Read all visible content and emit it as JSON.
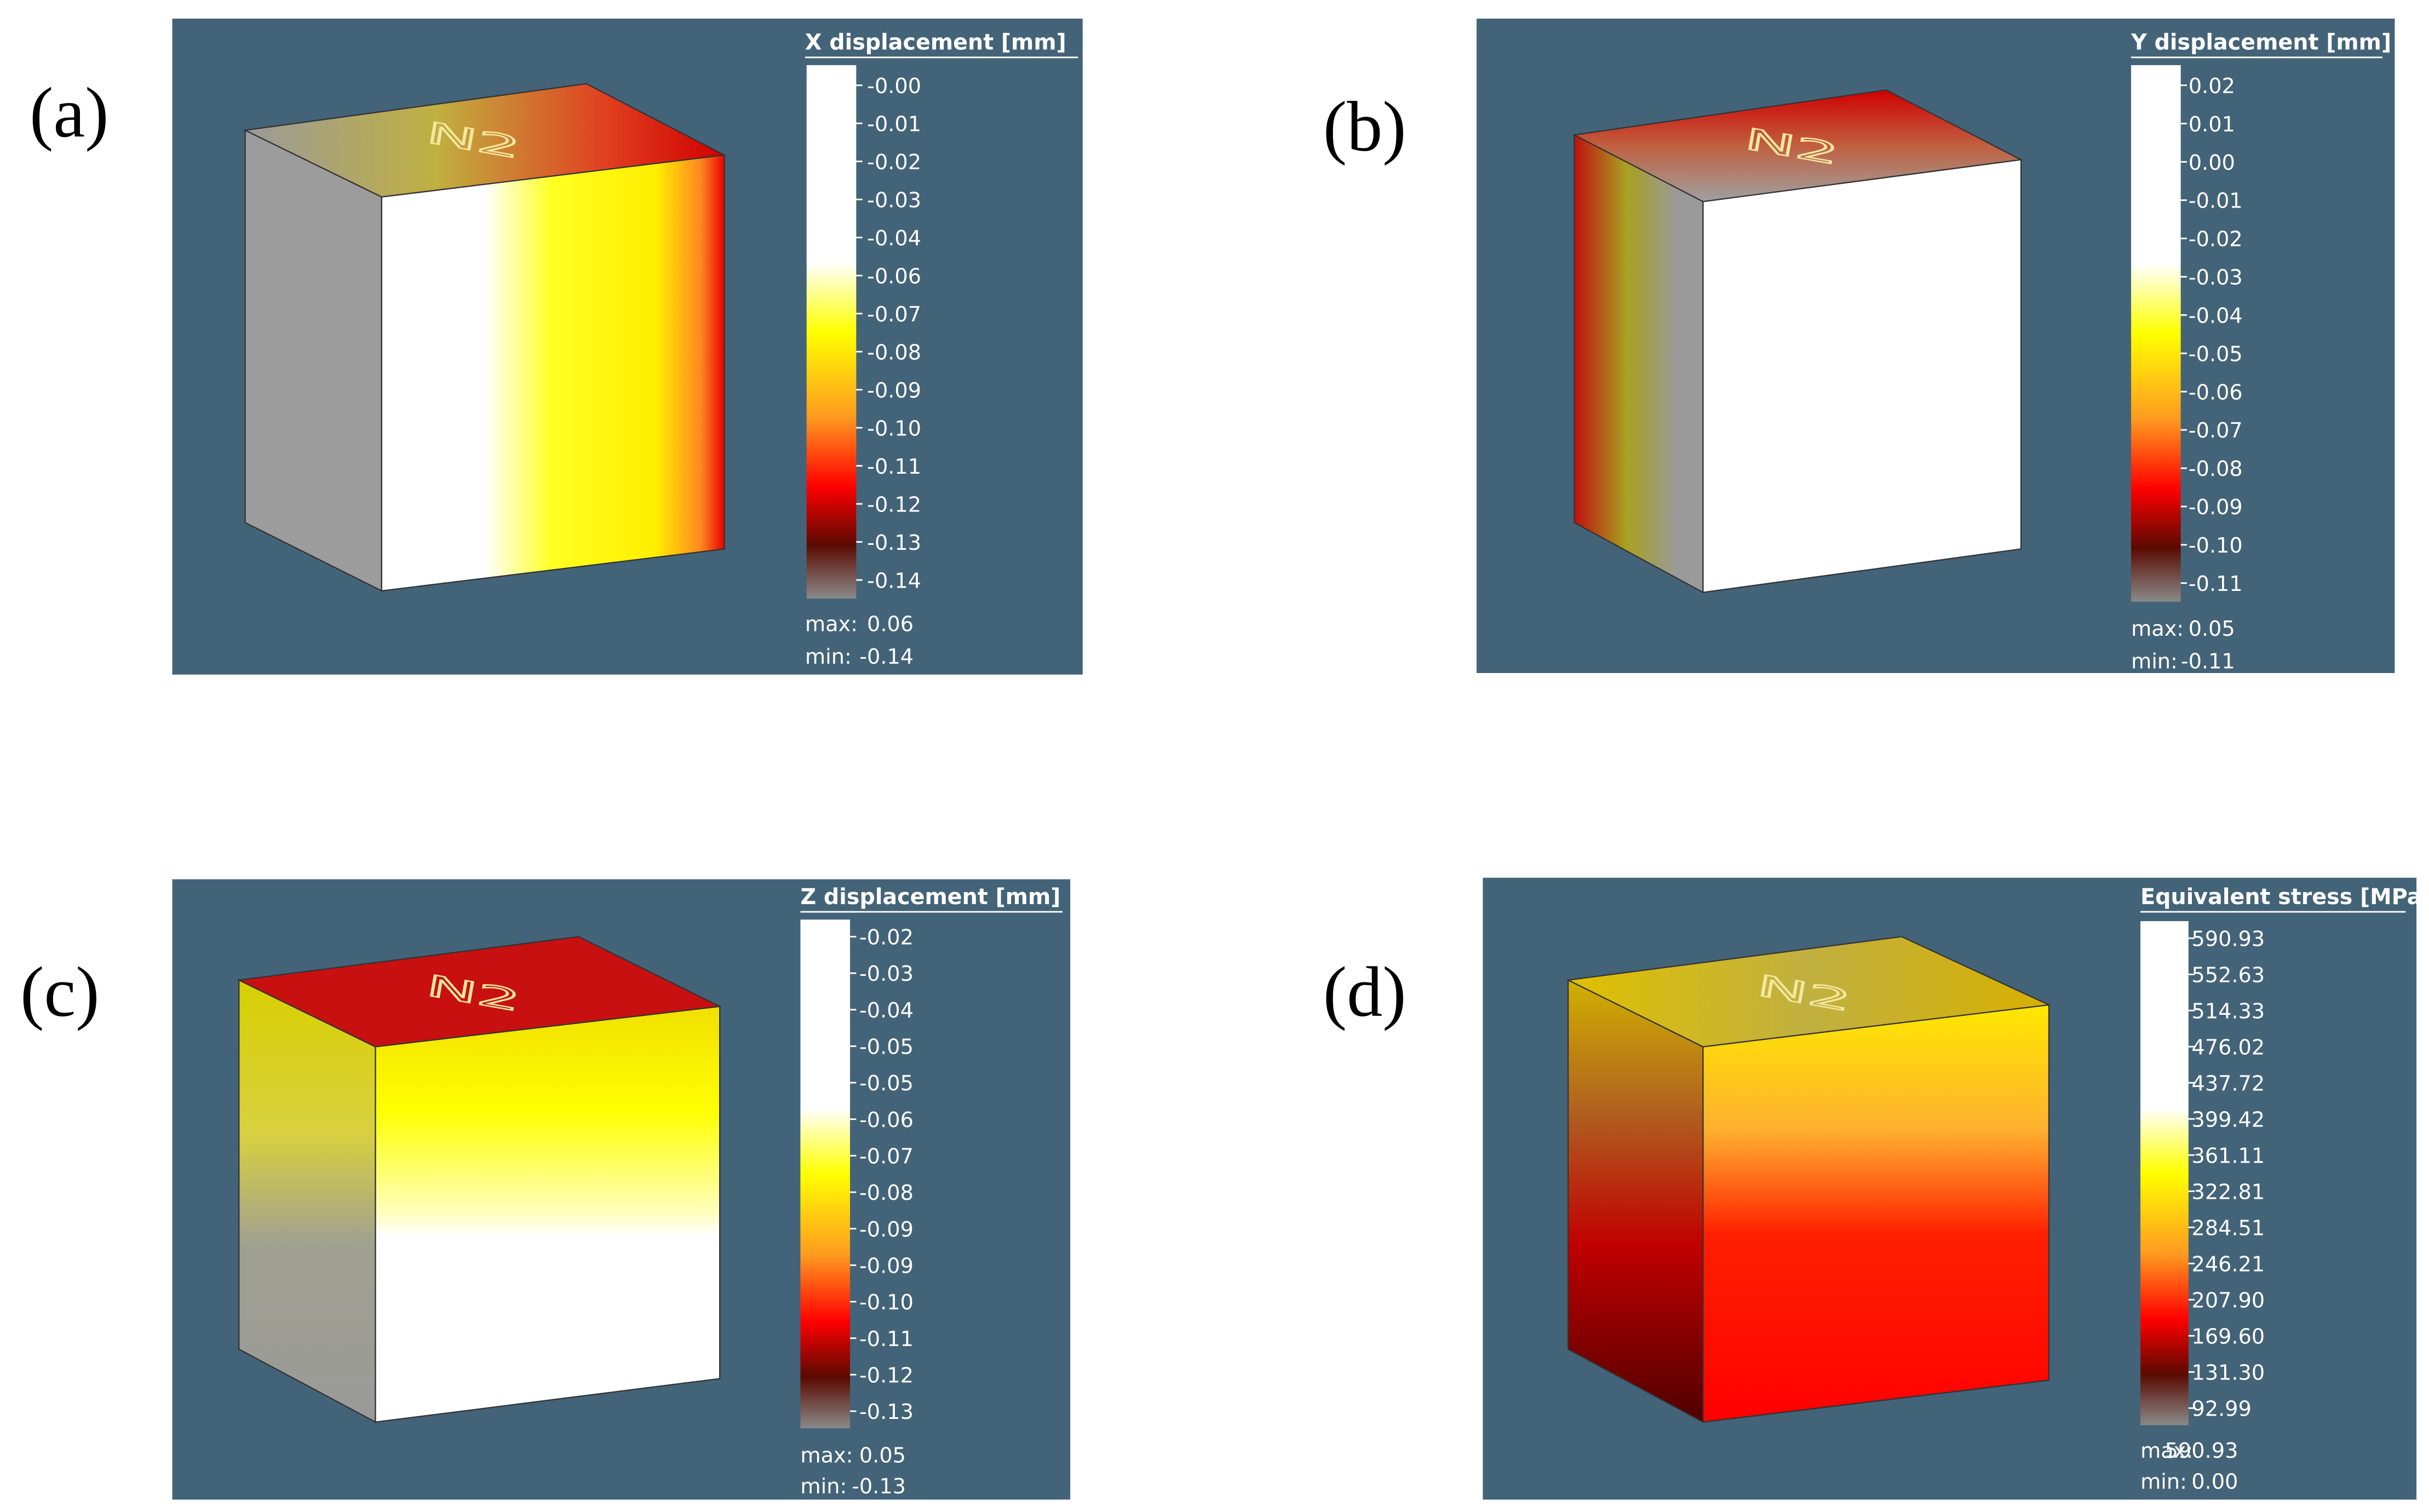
{
  "panels": [
    {
      "label": "(a)",
      "title": "X displacement [mm]",
      "engraving": "N2",
      "ticks": [
        "-0.00",
        "-0.01",
        "-0.02",
        "-0.03",
        "-0.04",
        "-0.06",
        "-0.07",
        "-0.08",
        "-0.09",
        "-0.10",
        "-0.11",
        "-0.12",
        "-0.13",
        "-0.14"
      ],
      "max_label": "max:",
      "max": "0.06",
      "min_label": "min:",
      "min": "-0.14"
    },
    {
      "label": "(b)",
      "title": "Y displacement [mm]",
      "engraving": "N2",
      "ticks": [
        "0.02",
        "0.01",
        "0.00",
        "-0.01",
        "-0.02",
        "-0.03",
        "-0.04",
        "-0.05",
        "-0.06",
        "-0.07",
        "-0.08",
        "-0.09",
        "-0.10",
        "-0.11"
      ],
      "max_label": "max:",
      "max": "0.05",
      "min_label": "min:",
      "min": "-0.11"
    },
    {
      "label": "(c)",
      "title": "Z displacement [mm]",
      "engraving": "N2",
      "ticks": [
        "-0.02",
        "-0.03",
        "-0.04",
        "-0.05",
        "-0.05",
        "-0.06",
        "-0.07",
        "-0.08",
        "-0.09",
        "-0.09",
        "-0.10",
        "-0.11",
        "-0.12",
        "-0.13"
      ],
      "max_label": "max:",
      "max": "0.05",
      "min_label": "min:",
      "min": "-0.13"
    },
    {
      "label": "(d)",
      "title": "Equivalent stress [MPa]",
      "engraving": "N2",
      "ticks": [
        "590.93",
        "552.63",
        "514.33",
        "476.02",
        "437.72",
        "399.42",
        "361.11",
        "322.81",
        "284.51",
        "246.21",
        "207.90",
        "169.60",
        "131.30",
        "92.99"
      ],
      "max_label": "max:",
      "max": "590.93",
      "min_label": "min:",
      "min": "0.00"
    }
  ]
}
